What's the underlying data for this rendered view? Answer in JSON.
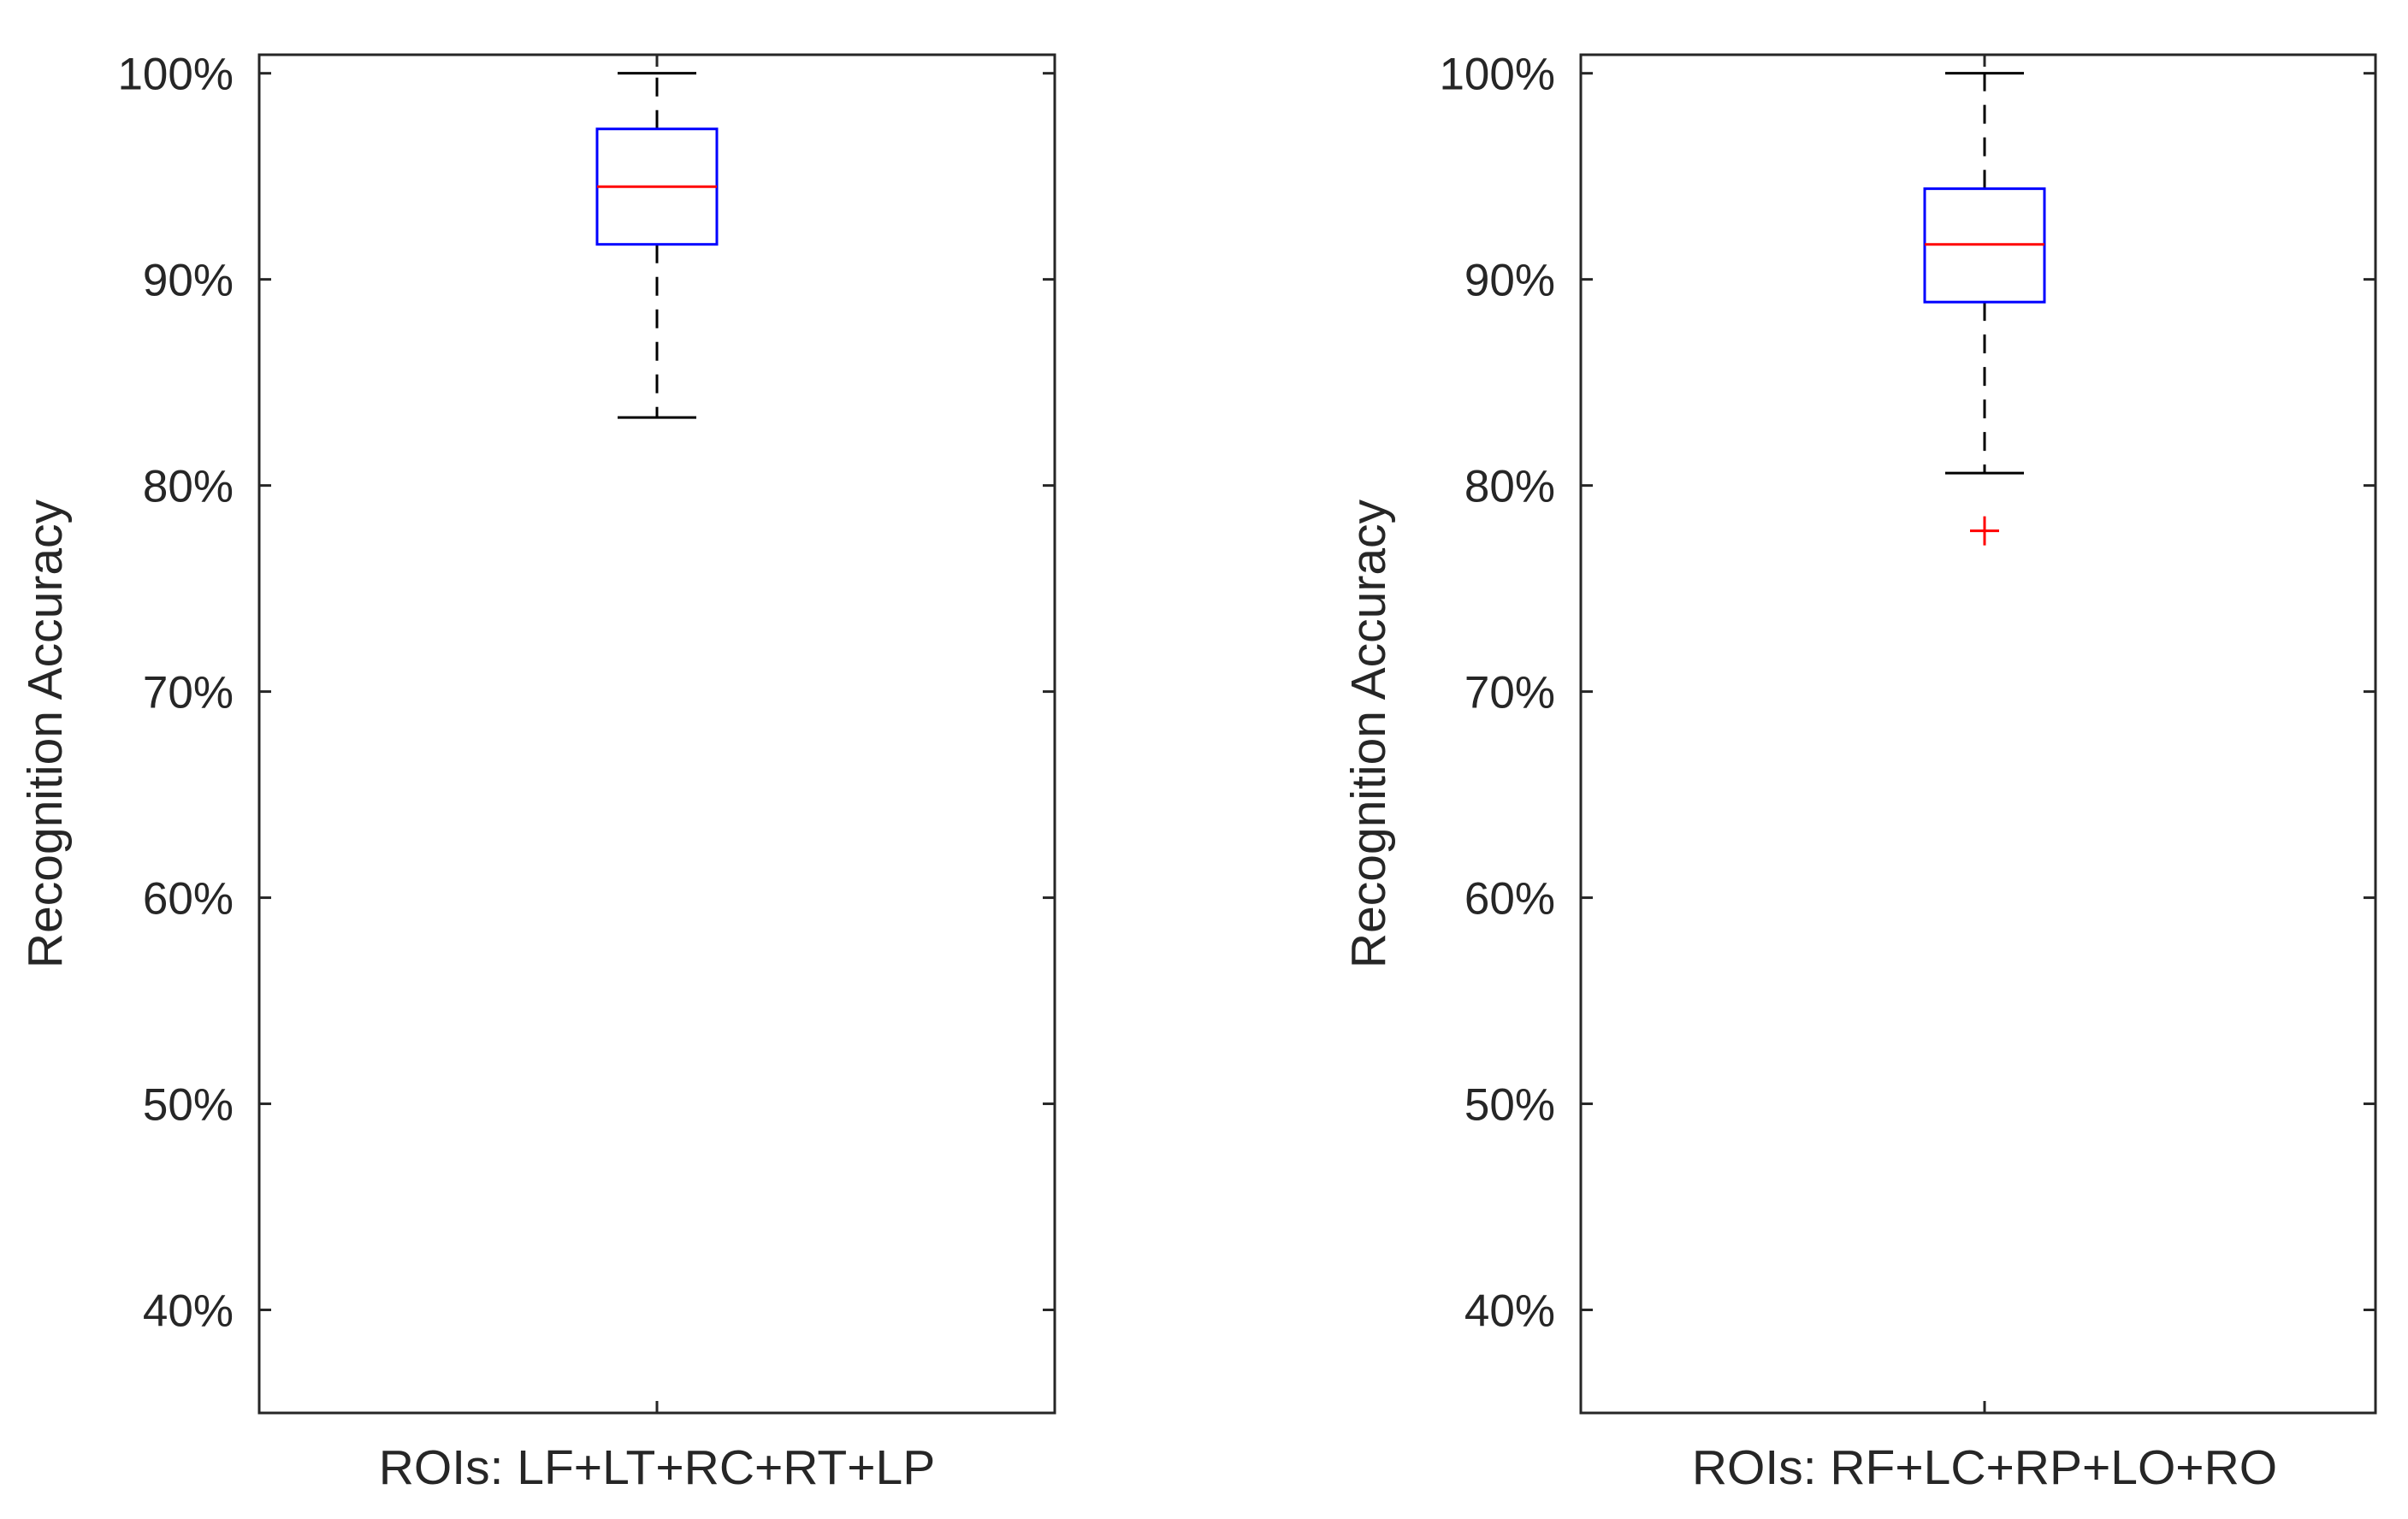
{
  "chart_data": [
    {
      "type": "box",
      "ylabel": "Recognition Accuracy",
      "xlabel": "ROIs: LF+LT+RC+RT+LP",
      "ylim": [
        35,
        100.9
      ],
      "yticks": [
        40,
        50,
        60,
        70,
        80,
        90,
        100
      ],
      "ytick_labels": [
        "40%",
        "50%",
        "60%",
        "70%",
        "80%",
        "90%",
        "100%"
      ],
      "box": {
        "whisker_low": 83.3,
        "q1": 91.7,
        "median": 94.5,
        "q3": 97.3,
        "whisker_high": 100
      },
      "outliers": [],
      "colors": {
        "box": "#0000ff",
        "median": "#ff0000",
        "whisker": "#000000",
        "outlier": "#ff0000"
      },
      "grid": false
    },
    {
      "type": "box",
      "ylabel": "Recognition Accuracy",
      "xlabel": "ROIs: RF+LC+RP+LO+RO",
      "ylim": [
        35,
        100.9
      ],
      "yticks": [
        40,
        50,
        60,
        70,
        80,
        90,
        100
      ],
      "ytick_labels": [
        "40%",
        "50%",
        "60%",
        "70%",
        "80%",
        "90%",
        "100%"
      ],
      "box": {
        "whisker_low": 80.6,
        "q1": 88.9,
        "median": 91.7,
        "q3": 94.4,
        "whisker_high": 100
      },
      "outliers": [
        77.8
      ],
      "colors": {
        "box": "#0000ff",
        "median": "#ff0000",
        "whisker": "#000000",
        "outlier": "#ff0000"
      },
      "grid": false
    }
  ]
}
